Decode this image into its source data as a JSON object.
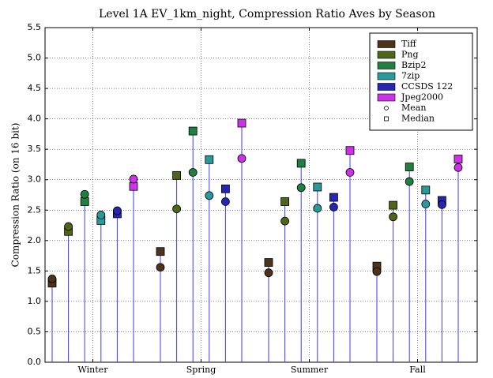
{
  "chart_data": {
    "type": "stem",
    "title": "Level 1A EV_1km_night, Compression Ratio Aves by Season",
    "y_label": "Compression Ratio (on 16 bit)",
    "categories": [
      "Winter",
      "Spring",
      "Summer",
      "Fall"
    ],
    "series": [
      {
        "name": "Tiff",
        "color": "#4d3319",
        "mean": [
          1.37,
          1.56,
          1.47,
          1.49
        ],
        "median": [
          1.3,
          1.82,
          1.64,
          1.58
        ]
      },
      {
        "name": "Png",
        "color": "#4d6619",
        "mean": [
          2.23,
          2.52,
          2.32,
          2.39
        ],
        "median": [
          2.15,
          3.07,
          2.64,
          2.58
        ]
      },
      {
        "name": "Bzip2",
        "color": "#1f8040",
        "mean": [
          2.76,
          3.12,
          2.87,
          2.97
        ],
        "median": [
          2.64,
          3.8,
          3.27,
          3.21
        ]
      },
      {
        "name": "7zip",
        "color": "#2a9999",
        "mean": [
          2.42,
          2.74,
          2.53,
          2.6
        ],
        "median": [
          2.33,
          3.33,
          2.88,
          2.83
        ]
      },
      {
        "name": "CCSDS 122",
        "color": "#2626b3",
        "mean": [
          2.49,
          2.64,
          2.55,
          2.59
        ],
        "median": [
          2.44,
          2.85,
          2.71,
          2.66
        ]
      },
      {
        "name": "Jpeg2000",
        "color": "#cc33e6",
        "mean": [
          3.01,
          3.35,
          3.12,
          3.2
        ],
        "median": [
          2.89,
          3.93,
          3.48,
          3.34
        ]
      }
    ],
    "mean_label": "Mean",
    "median_label": "Median",
    "stem_color": "#3b3bff",
    "ylim": [
      0,
      5.5
    ],
    "yticks": [
      {
        "value": 0,
        "label": "0.0"
      },
      0.5,
      {
        "value": 1,
        "label": "1.0"
      },
      1.5,
      {
        "value": 2,
        "label": "2.0"
      },
      2.5,
      {
        "value": 3,
        "label": "3.0"
      },
      3.5,
      {
        "value": 4,
        "label": "4.0"
      },
      4.5,
      {
        "value": 5,
        "label": "5.0"
      },
      5.5
    ],
    "grid": true,
    "legend": "upper right"
  }
}
